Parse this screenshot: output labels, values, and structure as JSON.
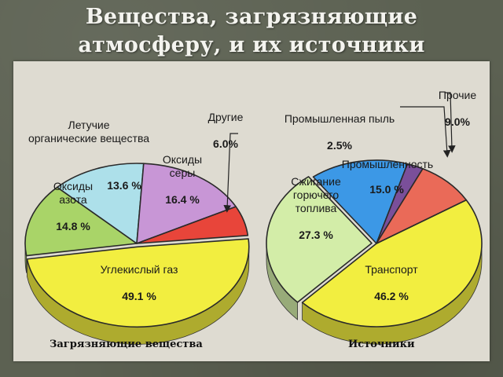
{
  "slide": {
    "title_line1": "Вещества, загрязняющие",
    "title_line2": "атмосферу, и их источники"
  },
  "chart_data": [
    {
      "type": "pie",
      "caption": "Загрязняющие вещества",
      "slices": [
        {
          "label": "Углекислый газ",
          "value": 49.1,
          "value_text": "49.1 %",
          "color": "#f2ee40"
        },
        {
          "label": "Оксиды азота",
          "value": 14.8,
          "value_text": "14.8 %",
          "color": "#a9d468"
        },
        {
          "label": "Летучие органические вещества",
          "value": 13.6,
          "value_text": "13.6 %",
          "color": "#ade0ea"
        },
        {
          "label": "Оксиды серы",
          "value": 16.4,
          "value_text": "16.4 %",
          "color": "#c896d6"
        },
        {
          "label": "Другие",
          "value": 6.0,
          "value_text": "6.0%",
          "color": "#e8453a"
        }
      ]
    },
    {
      "type": "pie",
      "caption": "Источники",
      "slices": [
        {
          "label": "Транспорт",
          "value": 46.2,
          "value_text": "46.2 %",
          "color": "#f2ee40"
        },
        {
          "label": "Сжигание горючего топлива",
          "value": 27.3,
          "value_text": "27.3 %",
          "color": "#d3eda8"
        },
        {
          "label": "Промышленность",
          "value": 15.0,
          "value_text": "15.0 %",
          "color": "#3c98e6"
        },
        {
          "label": "Промышленная пыль",
          "value": 2.5,
          "value_text": "2.5%",
          "color": "#7a4f9a"
        },
        {
          "label": "Прочие",
          "value": 9.0,
          "value_text": "9.0%",
          "color": "#ea6a58"
        }
      ]
    }
  ],
  "labels": {
    "co2_name": "Углекислый газ",
    "no_name": "Оксиды\nазота",
    "voc_name": "Летучие\nорганические вещества",
    "so_name": "Оксиды\nсеры",
    "other_name": "Другие",
    "transport_name": "Транспорт",
    "fuel_name": "Сжигание\nгорючего\nтоплива",
    "industry_name": "Промышленность",
    "dust_name": "Промышленная пыль",
    "misc_name": "Прочие"
  }
}
